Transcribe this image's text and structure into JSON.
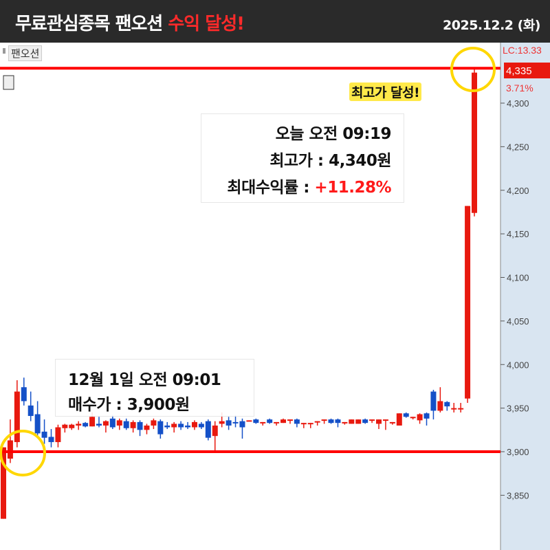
{
  "header": {
    "title_prefix": "무료관심종목 팬오션 ",
    "title_highlight": "수익 달성!",
    "date": "2025.12.2 (화)"
  },
  "stock_tag": "팬오션",
  "colors": {
    "up": "#e8190f",
    "down": "#1450c8",
    "line": "#ff0000",
    "circle": "#ffd700",
    "axis_bg": "#d9e5f1"
  },
  "annotations": {
    "high": {
      "time": "오늘 오전 09:19",
      "price": "최고가 : 4,340원",
      "return_label": "최대수익률 : ",
      "return_value": "+11.28%"
    },
    "buy": {
      "time": "12월 1일 오전 09:01",
      "price": "매수가 : 3,900원"
    },
    "high_badge": "최고가 달성!"
  },
  "chart_data": {
    "type": "candlestick",
    "ylim": [
      3810,
      4360
    ],
    "y_ticks": [
      "3,850",
      "3,900",
      "3,950",
      "4,000",
      "4,050",
      "4,100",
      "4,150",
      "4,200",
      "4,250",
      "4,300"
    ],
    "y_tick_values": [
      3850,
      3900,
      3950,
      4000,
      4050,
      4100,
      4150,
      4200,
      4250,
      4300
    ],
    "axis_labels": {
      "lc": "LC:13.33",
      "last_price": "4,335",
      "change": "3.71%"
    },
    "reference_lines": [
      4340,
      3900
    ],
    "ohlc": [
      [
        3823,
        3905,
        3823,
        3905
      ],
      [
        3892,
        3937,
        3887,
        3913
      ],
      [
        3911,
        3982,
        3905,
        3969
      ],
      [
        3974,
        3985,
        3953,
        3958
      ],
      [
        3953,
        3969,
        3935,
        3941
      ],
      [
        3943,
        3958,
        3916,
        3921
      ],
      [
        3923,
        3937,
        3909,
        3916
      ],
      [
        3917,
        3926,
        3905,
        3911
      ],
      [
        3911,
        3931,
        3905,
        3928
      ],
      [
        3927,
        3932,
        3922,
        3931
      ],
      [
        3927,
        3932,
        3925,
        3931
      ],
      [
        3930,
        3935,
        3925,
        3932
      ],
      [
        3933,
        3934,
        3928,
        3929
      ],
      [
        3929,
        3945,
        3929,
        3940
      ],
      [
        3932,
        3940,
        3928,
        3930
      ],
      [
        3930,
        3936,
        3922,
        3935
      ],
      [
        3938,
        3942,
        3926,
        3928
      ],
      [
        3930,
        3938,
        3925,
        3936
      ],
      [
        3935,
        3938,
        3925,
        3927
      ],
      [
        3927,
        3936,
        3922,
        3934
      ],
      [
        3934,
        3936,
        3918,
        3925
      ],
      [
        3925,
        3932,
        3920,
        3930
      ],
      [
        3930,
        3938,
        3926,
        3936
      ],
      [
        3935,
        3937,
        3915,
        3920
      ],
      [
        3930,
        3934,
        3926,
        3928
      ],
      [
        3928,
        3934,
        3922,
        3932
      ],
      [
        3932,
        3935,
        3925,
        3928
      ],
      [
        3930,
        3934,
        3926,
        3928
      ],
      [
        3928,
        3936,
        3925,
        3934
      ],
      [
        3932,
        3934,
        3926,
        3928
      ],
      [
        3935,
        3937,
        3913,
        3916
      ],
      [
        3918,
        3935,
        3900,
        3930
      ],
      [
        3932,
        3945,
        3928,
        3935
      ],
      [
        3936,
        3940,
        3925,
        3930
      ],
      [
        3934,
        3942,
        3928,
        3933
      ],
      [
        3935,
        3938,
        3915,
        3928
      ],
      [
        3935,
        3936,
        3935,
        3936
      ],
      [
        3937,
        3938,
        3932,
        3933
      ],
      [
        3934,
        3934,
        3930,
        3934
      ],
      [
        3937,
        3938,
        3932,
        3933
      ],
      [
        3934,
        3934,
        3930,
        3934
      ],
      [
        3933,
        3938,
        3933,
        3937
      ],
      [
        3937,
        3937,
        3932,
        3937
      ],
      [
        3937,
        3938,
        3928,
        3932
      ],
      [
        3933,
        3933,
        3927,
        3933
      ],
      [
        3933,
        3933,
        3927,
        3933
      ],
      [
        3935,
        3935,
        3930,
        3935
      ],
      [
        3937,
        3937,
        3932,
        3937
      ],
      [
        3937,
        3938,
        3932,
        3933
      ],
      [
        3937,
        3938,
        3928,
        3933
      ],
      [
        3934,
        3934,
        3931,
        3934
      ],
      [
        3932,
        3937,
        3932,
        3937
      ],
      [
        3932,
        3937,
        3932,
        3937
      ],
      [
        3937,
        3938,
        3932,
        3933
      ],
      [
        3937,
        3937,
        3933,
        3937
      ],
      [
        3932,
        3937,
        3926,
        3937
      ],
      [
        3937,
        3937,
        3925,
        3937
      ],
      [
        3934,
        3934,
        3931,
        3934
      ],
      [
        3930,
        3944,
        3930,
        3944
      ],
      [
        3944,
        3945,
        3939,
        3940
      ],
      [
        3940,
        3940,
        3937,
        3940
      ],
      [
        3936,
        3944,
        3932,
        3943
      ],
      [
        3944,
        3945,
        3930,
        3938
      ],
      [
        3969,
        3971,
        3937,
        3947
      ],
      [
        3947,
        3974,
        3945,
        3958
      ],
      [
        3957,
        3958,
        3947,
        3952
      ],
      [
        3950,
        3956,
        3945,
        3950
      ],
      [
        3950,
        3956,
        3945,
        3950
      ],
      [
        3961,
        4182,
        3956,
        4182
      ],
      [
        4174,
        4340,
        4170,
        4335
      ]
    ]
  }
}
